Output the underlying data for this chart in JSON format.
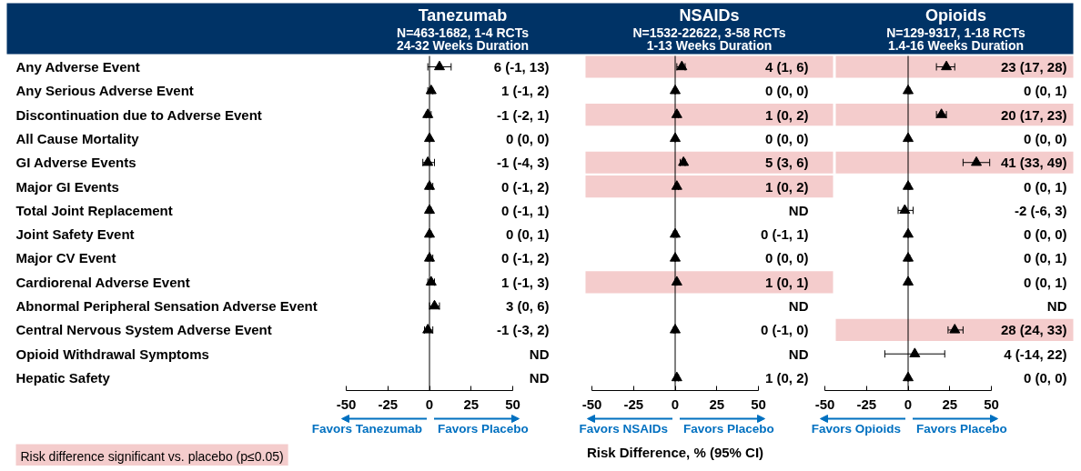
{
  "chart_data": [
    {
      "type": "scatter",
      "orientation": "horizontal",
      "title": "Tanezumab",
      "subtitle": "N=463-1682, 1-4 RCTs\n24-32 Weeks Duration",
      "categories": [
        "Any Adverse Event",
        "Any Serious Adverse Event",
        "Discontinuation due to Adverse Event",
        "All Cause Mortality",
        "GI Adverse Events",
        "Major GI Events",
        "Total Joint Replacement",
        "Joint Safety Event",
        "Major CV Event",
        "Cardiorenal Adverse Event",
        "Abnormal Peripheral Sensation Adverse Event",
        "Central Nervous System Adverse Event",
        "Opioid Withdrawal Symptoms",
        "Hepatic Safety"
      ],
      "color": "#000000",
      "marker": "triangle",
      "values": [
        6,
        1,
        -1,
        0,
        -1,
        0,
        0,
        0,
        0,
        1,
        3,
        -1,
        null,
        null
      ],
      "errors": [
        [
          -1,
          13
        ],
        [
          -1,
          2
        ],
        [
          -2,
          1
        ],
        [
          0,
          0
        ],
        [
          -4,
          3
        ],
        [
          -1,
          2
        ],
        [
          -1,
          1
        ],
        [
          0,
          1
        ],
        [
          -1,
          2
        ],
        [
          -1,
          3
        ],
        [
          0,
          6
        ],
        [
          -3,
          2
        ],
        null,
        null
      ],
      "value_labels": [
        "6 (-1, 13)",
        "1 (-1, 2)",
        "-1 (-2, 1)",
        "0 (0, 0)",
        "-1 (-4, 3)",
        "0 (-1, 2)",
        "0 (-1, 1)",
        "0 (0, 1)",
        "0 (-1, 2)",
        "1 (-1, 3)",
        "3 (0, 6)",
        "-1 (-3, 2)",
        "ND",
        "ND"
      ],
      "xlim": [
        -50,
        50
      ],
      "xticks": [
        -50,
        -25,
        0,
        25,
        50
      ],
      "ref_lines": [
        {
          "axis": "x",
          "value": 0,
          "color": "#000000"
        }
      ],
      "annotations": [
        "Favors Tanezumab",
        "Favors Placebo",
        "Risk difference significant vs. placebo (p≤0.05)"
      ]
    },
    {
      "type": "scatter",
      "orientation": "horizontal",
      "title": "NSAIDs",
      "subtitle": "N=1532-22622, 3-58 RCTs\n1-13 Weeks Duration",
      "categories": [
        "Any Adverse Event",
        "Any Serious Adverse Event",
        "Discontinuation due to Adverse Event",
        "All Cause Mortality",
        "GI Adverse Events",
        "Major GI Events",
        "Total Joint Replacement",
        "Joint Safety Event",
        "Major CV Event",
        "Cardiorenal Adverse Event",
        "Abnormal Peripheral Sensation Adverse Event",
        "Central Nervous System Adverse Event",
        "Opioid Withdrawal Symptoms",
        "Hepatic Safety"
      ],
      "tick_labels": "x",
      "color": "#000000",
      "marker": "triangle",
      "values": [
        4,
        0,
        1,
        0,
        5,
        1,
        null,
        0,
        0,
        1,
        null,
        0,
        null,
        1
      ],
      "errors": [
        [
          1,
          6
        ],
        [
          0,
          0
        ],
        [
          0,
          2
        ],
        [
          0,
          0
        ],
        [
          3,
          6
        ],
        [
          0,
          2
        ],
        null,
        [
          -1,
          1
        ],
        [
          0,
          0
        ],
        [
          0,
          1
        ],
        null,
        [
          -1,
          0
        ],
        null,
        [
          0,
          2
        ]
      ],
      "value_labels": [
        "4 (1, 6)",
        "0 (0, 0)",
        "1 (0, 2)",
        "0 (0, 0)",
        "5 (3, 6)",
        "1 (0, 2)",
        "ND",
        "0 (-1, 1)",
        "0 (0, 0)",
        "1 (0, 1)",
        "ND",
        "0 (-1, 0)",
        "ND",
        "1 (0, 2)"
      ],
      "xlim": [
        -50,
        50
      ],
      "xticks": [
        -50,
        -25,
        0,
        25,
        50
      ],
      "xlabel": "Risk Difference, % (95% CI)",
      "ref_lines": [
        {
          "axis": "x",
          "value": 0,
          "color": "#000000"
        }
      ],
      "bands": [
        {
          "axis": "y",
          "from": "Any Adverse Event",
          "to": "Any Adverse Event",
          "color": "#f4cccc"
        },
        {
          "axis": "y",
          "from": "Discontinuation due to Adverse Event",
          "to": "Discontinuation due to Adverse Event",
          "color": "#f4cccc"
        },
        {
          "axis": "y",
          "from": "GI Adverse Events",
          "to": "GI Adverse Events",
          "color": "#f4cccc"
        },
        {
          "axis": "y",
          "from": "Major GI Events",
          "to": "Major GI Events",
          "color": "#f4cccc"
        },
        {
          "axis": "y",
          "from": "Cardiorenal Adverse Event",
          "to": "Cardiorenal Adverse Event",
          "color": "#f4cccc"
        }
      ],
      "annotations": [
        "Favors NSAIDs",
        "Favors Placebo"
      ]
    },
    {
      "type": "scatter",
      "orientation": "horizontal",
      "title": "Opioids",
      "subtitle": "N=129-9317, 1-18 RCTs\n1.4-16 Weeks Duration",
      "categories": [
        "Any Adverse Event",
        "Any Serious Adverse Event",
        "Discontinuation due to Adverse Event",
        "All Cause Mortality",
        "GI Adverse Events",
        "Major GI Events",
        "Total Joint Replacement",
        "Joint Safety Event",
        "Major CV Event",
        "Cardiorenal Adverse Event",
        "Abnormal Peripheral Sensation Adverse Event",
        "Central Nervous System Adverse Event",
        "Opioid Withdrawal Symptoms",
        "Hepatic Safety"
      ],
      "tick_labels": "x",
      "color": "#000000",
      "marker": "triangle",
      "values": [
        23,
        0,
        20,
        0,
        41,
        0,
        -2,
        0,
        0,
        0,
        null,
        28,
        4,
        0
      ],
      "errors": [
        [
          17,
          28
        ],
        [
          0,
          1
        ],
        [
          17,
          23
        ],
        [
          0,
          0
        ],
        [
          33,
          49
        ],
        [
          0,
          1
        ],
        [
          -6,
          3
        ],
        [
          0,
          0
        ],
        [
          0,
          1
        ],
        [
          0,
          1
        ],
        null,
        [
          24,
          33
        ],
        [
          -14,
          22
        ],
        [
          0,
          0
        ]
      ],
      "value_labels": [
        "23 (17, 28)",
        "0 (0, 1)",
        "20 (17, 23)",
        "0 (0, 0)",
        "41 (33, 49)",
        "0 (0, 1)",
        "-2 (-6, 3)",
        "0 (0, 0)",
        "0 (0, 1)",
        "0 (0, 1)",
        "ND",
        "28 (24, 33)",
        "4 (-14, 22)",
        "0 (0, 0)"
      ],
      "xlim": [
        -50,
        50
      ],
      "xticks": [
        -50,
        -25,
        0,
        25,
        50
      ],
      "ref_lines": [
        {
          "axis": "x",
          "value": 0,
          "color": "#000000"
        }
      ],
      "bands": [
        {
          "axis": "y",
          "from": "Any Adverse Event",
          "to": "Any Adverse Event",
          "color": "#f4cccc"
        },
        {
          "axis": "y",
          "from": "Discontinuation due to Adverse Event",
          "to": "Discontinuation due to Adverse Event",
          "color": "#f4cccc"
        },
        {
          "axis": "y",
          "from": "GI Adverse Events",
          "to": "GI Adverse Events",
          "color": "#f4cccc"
        },
        {
          "axis": "y",
          "from": "Central Nervous System Adverse Event",
          "to": "Central Nervous System Adverse Event",
          "color": "#f4cccc"
        }
      ],
      "annotations": [
        "Favors Opioids",
        "Favors Placebo"
      ]
    }
  ]
}
